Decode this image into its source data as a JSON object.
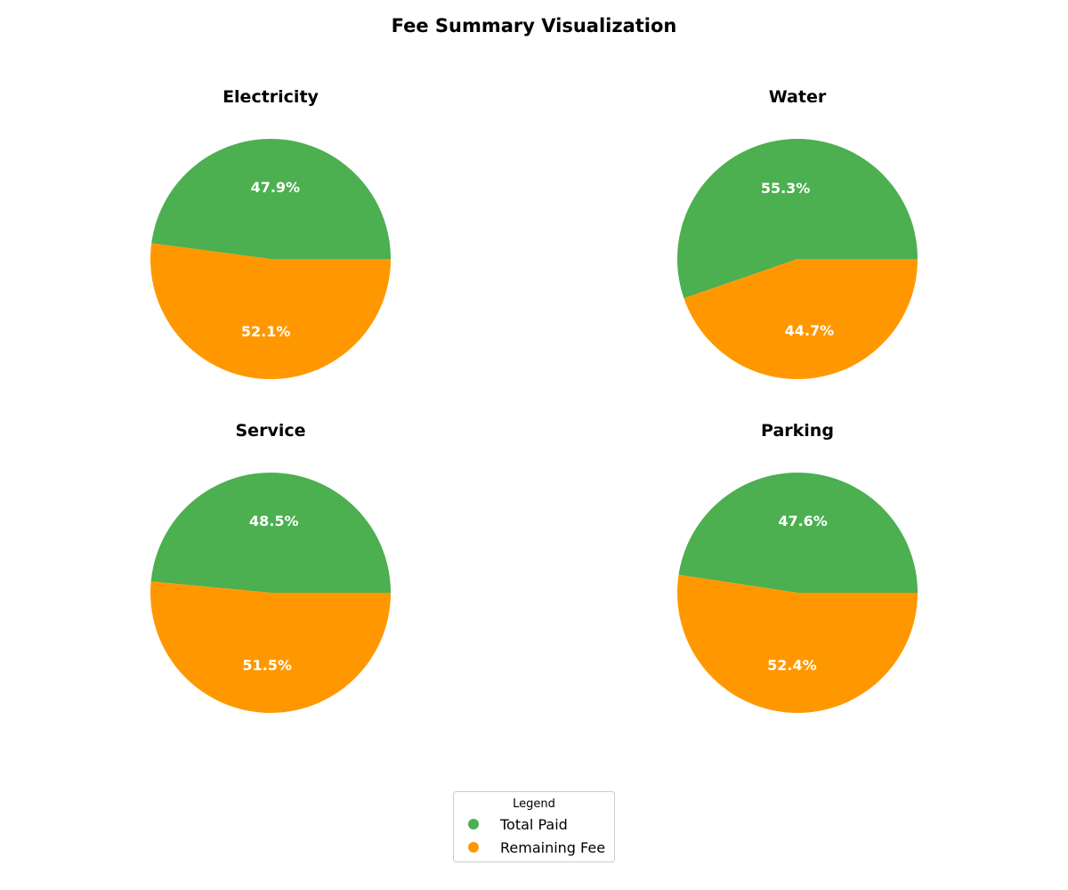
{
  "title": "Fee Summary Visualization",
  "colors": {
    "total_paid": "#4caf50",
    "remaining_fee": "#ff9800"
  },
  "chart_data": [
    {
      "type": "pie",
      "title": "Electricity",
      "series": [
        {
          "name": "Total Paid",
          "value": 47.9,
          "label": "47.9%"
        },
        {
          "name": "Remaining Fee",
          "value": 52.1,
          "label": "52.1%"
        }
      ]
    },
    {
      "type": "pie",
      "title": "Water",
      "series": [
        {
          "name": "Total Paid",
          "value": 55.3,
          "label": "55.3%"
        },
        {
          "name": "Remaining Fee",
          "value": 44.7,
          "label": "44.7%"
        }
      ]
    },
    {
      "type": "pie",
      "title": "Service",
      "series": [
        {
          "name": "Total Paid",
          "value": 48.5,
          "label": "48.5%"
        },
        {
          "name": "Remaining Fee",
          "value": 51.5,
          "label": "51.5%"
        }
      ]
    },
    {
      "type": "pie",
      "title": "Parking",
      "series": [
        {
          "name": "Total Paid",
          "value": 47.6,
          "label": "47.6%"
        },
        {
          "name": "Remaining Fee",
          "value": 52.4,
          "label": "52.4%"
        }
      ]
    }
  ],
  "legend": {
    "title": "Legend",
    "placement": "bottom-center",
    "items": [
      {
        "label": "Total Paid",
        "color": "#4caf50"
      },
      {
        "label": "Remaining Fee",
        "color": "#ff9800"
      }
    ]
  }
}
